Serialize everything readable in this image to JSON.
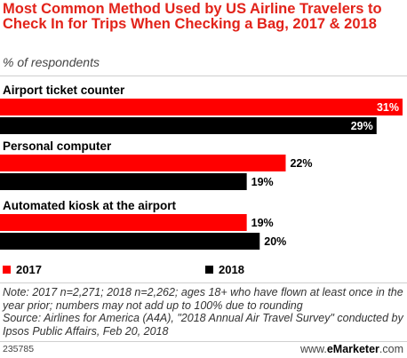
{
  "chart_data": {
    "type": "bar",
    "orientation": "horizontal",
    "title": "Most Common Method Used by US Airline Travelers to Check In for Trips When Checking a Bag, 2017 & 2018",
    "subtitle": "% of respondents",
    "categories": [
      "Airport ticket counter",
      "Personal computer",
      "Automated kiosk at the airport"
    ],
    "series": [
      {
        "name": "2017",
        "values": [
          31,
          22,
          19
        ],
        "labels": [
          "31%",
          "22%",
          "19%"
        ],
        "color": "#ff0000"
      },
      {
        "name": "2018",
        "values": [
          29,
          19,
          20
        ],
        "labels": [
          "29%",
          "19%",
          "20%"
        ],
        "color": "#000000"
      }
    ],
    "xlim": [
      0,
      31
    ],
    "grid": false,
    "legend_position": "bottom"
  },
  "footer": {
    "note": "Note: 2017 n=2,271; 2018 n=2,262; ages 18+ who have flown at least once in the year prior; numbers may not add up to 100% due to rounding",
    "source": "Source: Airlines for America (A4A), \"2018 Annual Air Travel Survey\" conducted by Ipsos Public Affairs, Feb 20, 2018",
    "chart_id": "235785",
    "brand_prefix": "www.",
    "brand_name": "eMarketer",
    "brand_suffix": ".com"
  }
}
